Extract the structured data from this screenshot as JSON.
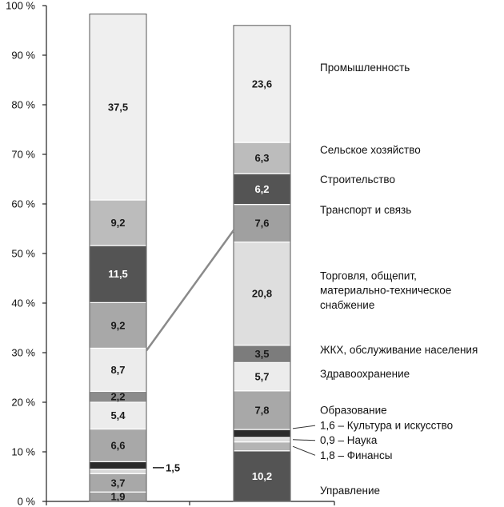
{
  "chart_data": {
    "type": "bar",
    "stacked": true,
    "grid": false,
    "legend": "none",
    "ylim": [
      0,
      100
    ],
    "y_ticks": [
      "0 %",
      "10 %",
      "20 %",
      "30 %",
      "40 %",
      "50 %",
      "60 %",
      "70 %",
      "80 %",
      "90 %",
      "100 %"
    ],
    "columns": [
      {
        "segments": [
          {
            "value": 1.9,
            "label": "1,9",
            "color": "#a0a0a0"
          },
          {
            "value": 3.7,
            "label": "3,7",
            "color": "#a8a8a8"
          },
          {
            "value": 0.9,
            "label": "",
            "color": "#d8d8d8"
          },
          {
            "value": 1.5,
            "label": "1,5",
            "color": "#2a2a2a"
          },
          {
            "value": 6.6,
            "label": "6,6",
            "color": "#a8a8a8"
          },
          {
            "value": 5.4,
            "label": "5,4",
            "color": "#ececec"
          },
          {
            "value": 2.2,
            "label": "2,2",
            "color": "#8c8c8c"
          },
          {
            "value": 8.7,
            "label": "8,7",
            "color": "#ececec"
          },
          {
            "value": 9.2,
            "label": "9,2",
            "color": "#a8a8a8"
          },
          {
            "value": 11.5,
            "label": "11,5",
            "color": "#545454"
          },
          {
            "value": 9.2,
            "label": "9,2",
            "color": "#bcbcbc"
          },
          {
            "value": 37.5,
            "label": "37,5",
            "color": "#efefef"
          }
        ]
      },
      {
        "segments": [
          {
            "value": 10.2,
            "label": "10,2",
            "color": "#545454"
          },
          {
            "value": 1.8,
            "label": "",
            "color": "#b4b4b4"
          },
          {
            "value": 0.9,
            "label": "",
            "color": "#dcdcdc"
          },
          {
            "value": 1.6,
            "label": "",
            "color": "#2a2a2a"
          },
          {
            "value": 7.8,
            "label": "7,8",
            "color": "#a8a8a8"
          },
          {
            "value": 5.7,
            "label": "5,7",
            "color": "#ececec"
          },
          {
            "value": 3.5,
            "label": "3,5",
            "color": "#7c7c7c"
          },
          {
            "value": 20.8,
            "label": "20,8",
            "color": "#dedede"
          },
          {
            "value": 7.6,
            "label": "7,6",
            "color": "#a0a0a0"
          },
          {
            "value": 6.2,
            "label": "6,2",
            "color": "#545454"
          },
          {
            "value": 6.3,
            "label": "6,3",
            "color": "#bcbcbc"
          },
          {
            "value": 23.6,
            "label": "23,6",
            "color": "#efefef"
          }
        ]
      }
    ],
    "category_labels": [
      {
        "text": "Управление",
        "y": 2.2
      },
      {
        "text": "1,8 – Финансы",
        "y": 9.3
      },
      {
        "text": "0,9 – Наука",
        "y": 12.3
      },
      {
        "text": "1,6 – Культура и искусство",
        "y": 15.3
      },
      {
        "text": "Образование",
        "y": 18.4
      },
      {
        "text": "Здравоохранение",
        "y": 25.7
      },
      {
        "text": "ЖКХ, обслуживание населения",
        "y": 30.6
      },
      {
        "text": "Торговля, общепит,",
        "y": 45.5
      },
      {
        "text": "материально-техническое",
        "y": 42.6
      },
      {
        "text": "снабжение",
        "y": 39.6
      },
      {
        "text": "Транспорт и связь",
        "y": 58.8
      },
      {
        "text": "Строительство",
        "y": 64.9
      },
      {
        "text": "Сельское хозяйство",
        "y": 70.9
      },
      {
        "text": "Промышленность",
        "y": 87.5
      }
    ],
    "connector": {
      "from": {
        "column": 0,
        "y": 30.4
      },
      "to": {
        "column": 1,
        "y": 54.7
      }
    },
    "callout": {
      "column": 0,
      "y": 6.8,
      "label": "1,5"
    }
  }
}
